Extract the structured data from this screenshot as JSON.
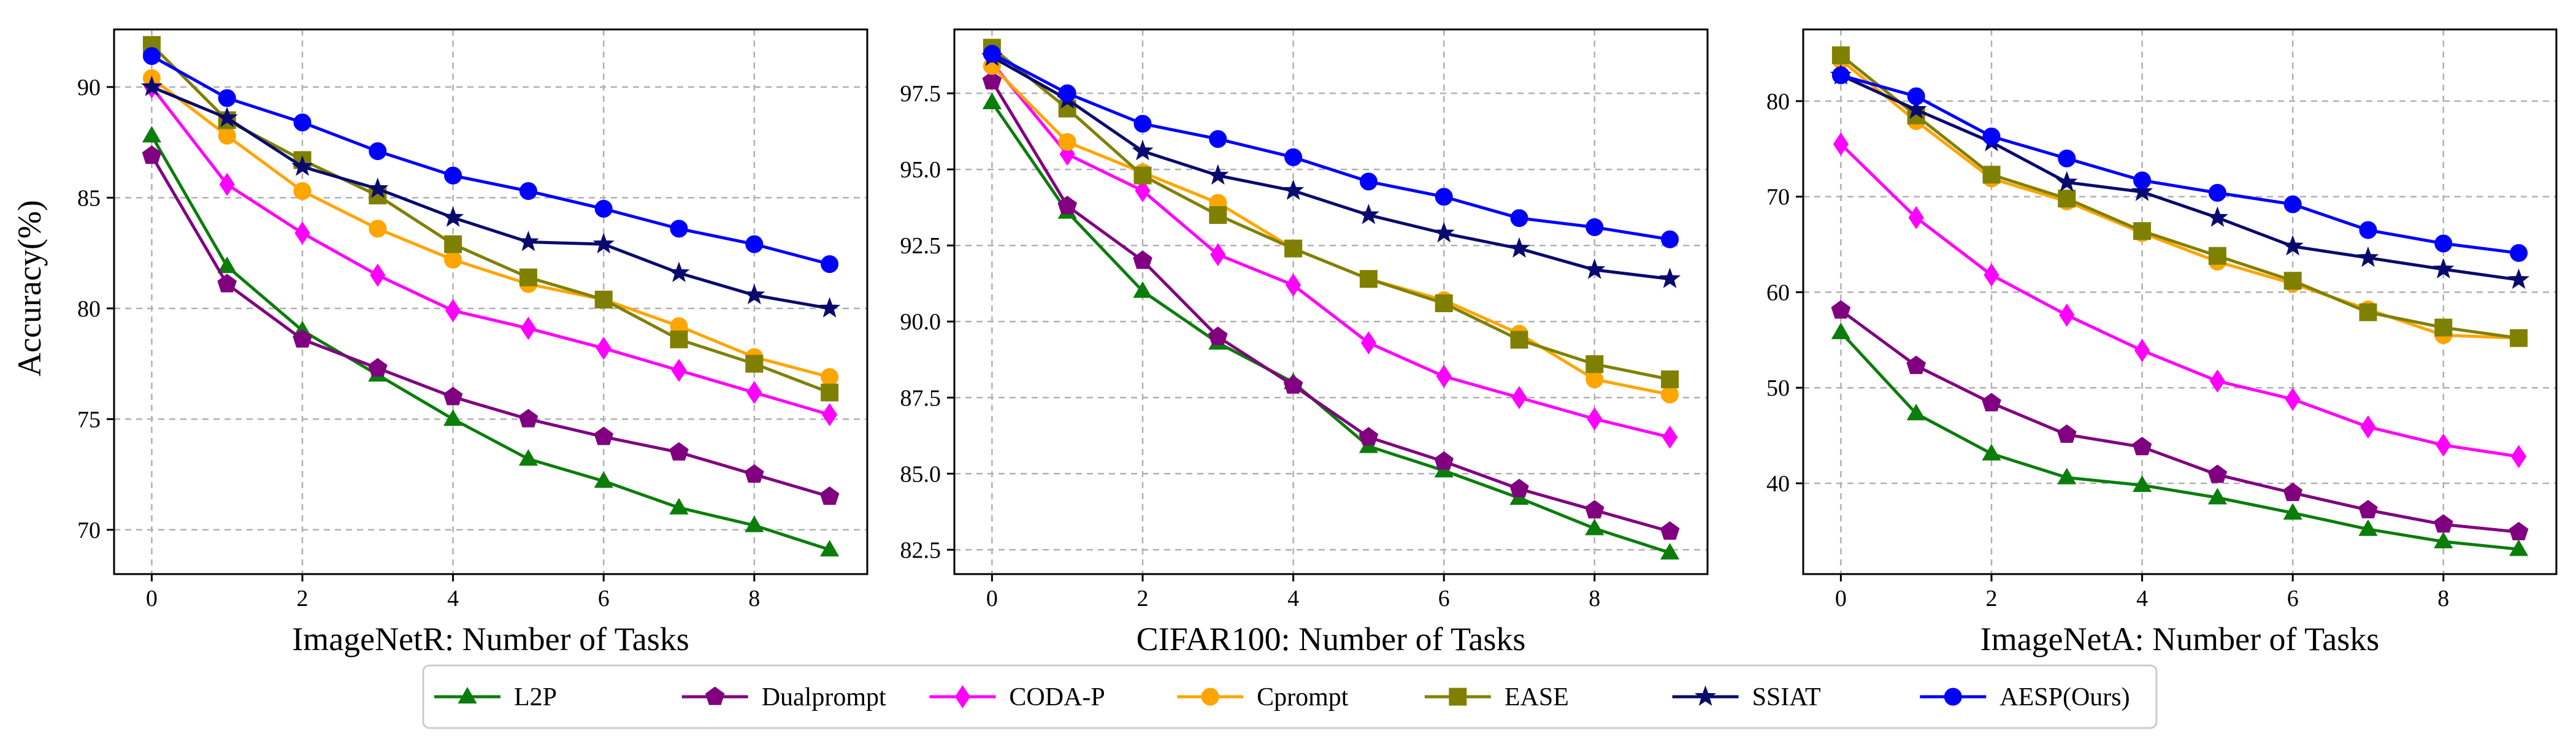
{
  "figure": {
    "ylabel": "Accuracy(%)",
    "legend_position": "bottom-center"
  },
  "series_styles": [
    {
      "name": "L2P",
      "color": "#0b7d0b",
      "marker": "triangle"
    },
    {
      "name": "Dualprompt",
      "color": "#800080",
      "marker": "pentagon"
    },
    {
      "name": "CODA-P",
      "color": "#ff00ff",
      "marker": "diamond"
    },
    {
      "name": "Cprompt",
      "color": "#ffa500",
      "marker": "circle"
    },
    {
      "name": "EASE",
      "color": "#808000",
      "marker": "square"
    },
    {
      "name": "SSIAT",
      "color": "#0a0a6e",
      "marker": "star"
    },
    {
      "name": "AESP(Ours)",
      "color": "#0000ff",
      "marker": "circle"
    }
  ],
  "chart_data": [
    {
      "type": "line",
      "title": "",
      "xlabel": "ImageNetR: Number of Tasks",
      "ylabel": "Accuracy(%)",
      "x": [
        0,
        1,
        2,
        3,
        4,
        5,
        6,
        7,
        8,
        9
      ],
      "xlim": [
        -0.5,
        9.5
      ],
      "ylim": [
        68.0,
        92.6
      ],
      "xticks": [
        0,
        2,
        4,
        6,
        8
      ],
      "yticks": [
        70,
        75,
        80,
        85,
        90
      ],
      "ytick_labels": [
        "70",
        "75",
        "80",
        "85",
        "90"
      ],
      "grid": true,
      "series": [
        {
          "name": "L2P",
          "values": [
            87.8,
            81.9,
            79.0,
            77.0,
            75.0,
            73.2,
            72.2,
            71.0,
            70.2,
            69.1
          ]
        },
        {
          "name": "Dualprompt",
          "values": [
            86.9,
            81.1,
            78.6,
            77.3,
            76.0,
            75.0,
            74.2,
            73.5,
            72.5,
            71.5
          ]
        },
        {
          "name": "CODA-P",
          "values": [
            90.0,
            85.6,
            83.4,
            81.5,
            79.9,
            79.1,
            78.2,
            77.2,
            76.2,
            75.2
          ]
        },
        {
          "name": "Cprompt",
          "values": [
            90.4,
            87.8,
            85.3,
            83.6,
            82.2,
            81.1,
            80.4,
            79.2,
            77.8,
            76.9
          ]
        },
        {
          "name": "EASE",
          "values": [
            91.9,
            88.5,
            86.7,
            85.1,
            82.9,
            81.4,
            80.4,
            78.6,
            77.5,
            76.2
          ]
        },
        {
          "name": "SSIAT",
          "values": [
            90.0,
            88.6,
            86.4,
            85.4,
            84.1,
            83.0,
            82.9,
            81.6,
            80.6,
            80.0
          ]
        },
        {
          "name": "AESP(Ours)",
          "values": [
            91.4,
            89.5,
            88.4,
            87.1,
            86.0,
            85.3,
            84.5,
            83.6,
            82.9,
            82.0
          ]
        }
      ]
    },
    {
      "type": "line",
      "title": "",
      "xlabel": "CIFAR100: Number of Tasks",
      "ylabel": "",
      "x": [
        0,
        1,
        2,
        3,
        4,
        5,
        6,
        7,
        8,
        9
      ],
      "xlim": [
        -0.5,
        9.5
      ],
      "ylim": [
        81.7,
        99.6
      ],
      "xticks": [
        0,
        2,
        4,
        6,
        8
      ],
      "yticks": [
        82.5,
        85.0,
        87.5,
        90.0,
        92.5,
        95.0,
        97.5
      ],
      "ytick_labels": [
        "82.5",
        "85.0",
        "87.5",
        "90.0",
        "92.5",
        "95.0",
        "97.5"
      ],
      "grid": true,
      "series": [
        {
          "name": "L2P",
          "values": [
            97.2,
            93.6,
            91.0,
            89.3,
            88.0,
            85.9,
            85.1,
            84.2,
            83.2,
            82.4
          ]
        },
        {
          "name": "Dualprompt",
          "values": [
            97.9,
            93.8,
            92.0,
            89.5,
            87.9,
            86.2,
            85.4,
            84.5,
            83.8,
            83.1
          ]
        },
        {
          "name": "CODA-P",
          "values": [
            98.5,
            95.5,
            94.3,
            92.2,
            91.2,
            89.3,
            88.2,
            87.5,
            86.8,
            86.2
          ]
        },
        {
          "name": "Cprompt",
          "values": [
            98.4,
            95.9,
            94.9,
            93.9,
            92.4,
            91.4,
            90.7,
            89.6,
            88.1,
            87.6
          ]
        },
        {
          "name": "EASE",
          "values": [
            99.0,
            97.0,
            94.8,
            93.5,
            92.4,
            91.4,
            90.6,
            89.4,
            88.6,
            88.1
          ]
        },
        {
          "name": "SSIAT",
          "values": [
            98.7,
            97.3,
            95.6,
            94.8,
            94.3,
            93.5,
            92.9,
            92.4,
            91.7,
            91.4
          ]
        },
        {
          "name": "AESP(Ours)",
          "values": [
            98.8,
            97.5,
            96.5,
            96.0,
            95.4,
            94.6,
            94.1,
            93.4,
            93.1,
            92.7
          ]
        }
      ]
    },
    {
      "type": "line",
      "title": "",
      "xlabel": "ImageNetA: Number of Tasks",
      "ylabel": "",
      "x": [
        0,
        1,
        2,
        3,
        4,
        5,
        6,
        7,
        8,
        9
      ],
      "xlim": [
        -0.5,
        9.5
      ],
      "ylim": [
        30.5,
        87.5
      ],
      "xticks": [
        0,
        2,
        4,
        6,
        8
      ],
      "yticks": [
        40,
        50,
        60,
        70,
        80
      ],
      "ytick_labels": [
        "40",
        "50",
        "60",
        "70",
        "80"
      ],
      "grid": true,
      "series": [
        {
          "name": "L2P",
          "values": [
            55.8,
            47.3,
            43.1,
            40.6,
            39.8,
            38.5,
            36.9,
            35.2,
            33.9,
            33.1
          ]
        },
        {
          "name": "Dualprompt",
          "values": [
            58.1,
            52.3,
            48.4,
            45.1,
            43.8,
            40.9,
            39.0,
            37.2,
            35.7,
            34.9
          ]
        },
        {
          "name": "CODA-P",
          "values": [
            75.5,
            67.8,
            61.8,
            57.6,
            53.9,
            50.7,
            48.8,
            45.9,
            44.0,
            42.8
          ]
        },
        {
          "name": "Cprompt",
          "values": [
            84.3,
            77.9,
            71.9,
            69.5,
            66.2,
            63.2,
            60.9,
            58.2,
            55.5,
            55.2
          ]
        },
        {
          "name": "EASE",
          "values": [
            84.8,
            78.5,
            72.3,
            69.8,
            66.4,
            63.8,
            61.2,
            57.9,
            56.3,
            55.2
          ]
        },
        {
          "name": "SSIAT",
          "values": [
            82.7,
            79.1,
            75.7,
            71.5,
            70.5,
            67.8,
            64.8,
            63.6,
            62.4,
            61.3
          ]
        },
        {
          "name": "AESP(Ours)",
          "values": [
            82.7,
            80.5,
            76.3,
            74.0,
            71.7,
            70.4,
            69.2,
            66.5,
            65.1,
            64.1
          ]
        }
      ]
    }
  ]
}
